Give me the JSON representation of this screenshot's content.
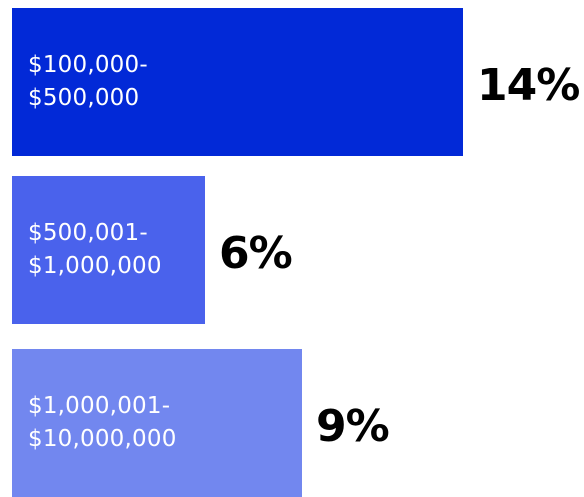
{
  "chart_data": {
    "type": "bar",
    "orientation": "horizontal",
    "title": "",
    "xlabel": "",
    "ylabel": "",
    "grid": false,
    "legend": "none",
    "categories": [
      "$100,000-\n$500,000",
      "$500,001-\n$1,000,000",
      "$1,000,001-\n$10,000,000"
    ],
    "values": [
      14,
      6,
      9
    ],
    "value_labels": [
      "14%",
      "6%",
      "9%"
    ],
    "colors": [
      "#0229d7",
      "#4a62ec",
      "#7287ef"
    ]
  }
}
